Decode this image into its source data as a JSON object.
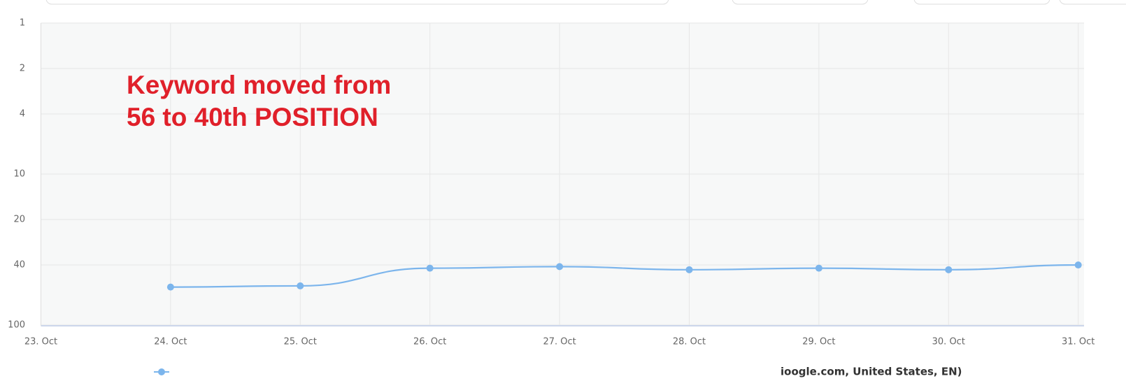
{
  "chart_data": {
    "type": "line",
    "x": [
      "23. Oct",
      "24. Oct",
      "25. Oct",
      "26. Oct",
      "27. Oct",
      "28. Oct",
      "29. Oct",
      "30. Oct",
      "31. Oct"
    ],
    "series": [
      {
        "name": "ioogle.com, United States, EN)",
        "color": "#7cb5ec",
        "values": [
          null,
          56,
          55,
          42,
          41,
          43,
          42,
          43,
          40
        ]
      }
    ],
    "ylim": [
      1,
      100
    ],
    "yticks": [
      1,
      2,
      4,
      10,
      20,
      40,
      100
    ],
    "log_scale": true,
    "inverted": true,
    "grid": true,
    "annotation": [
      "Keyword moved from",
      "56 to 40th POSITION"
    ]
  }
}
